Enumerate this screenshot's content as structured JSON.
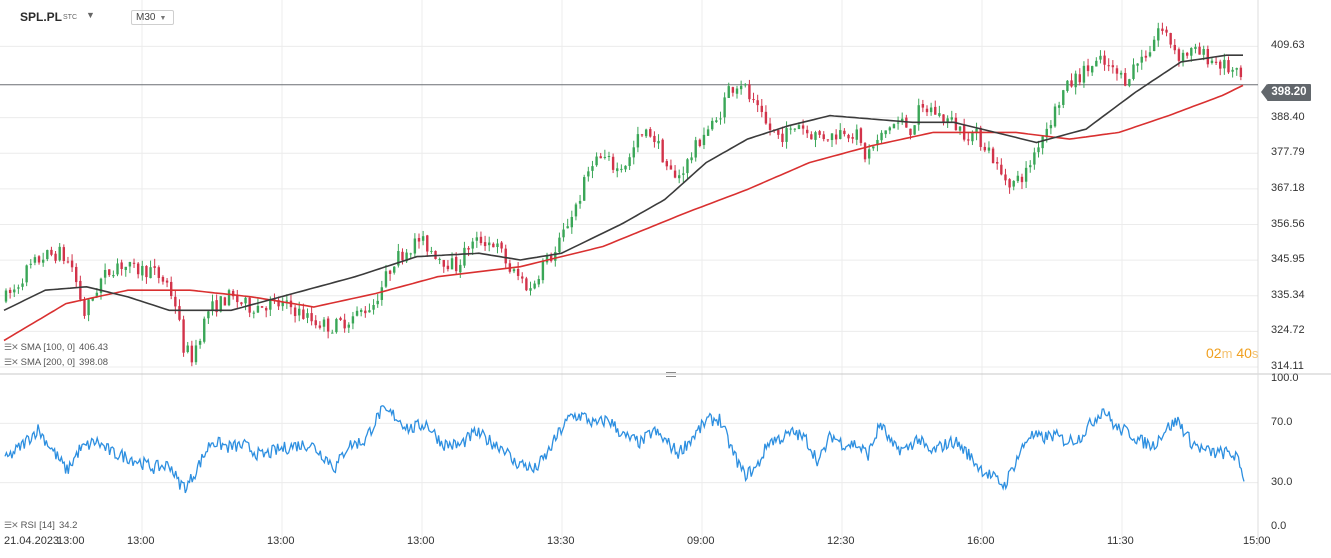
{
  "header": {
    "symbol": "SPL.PL",
    "symbol_suffix": "STC",
    "timeframe": "M30"
  },
  "indicators": {
    "sma100": {
      "label": "SMA [100,  0]",
      "value": "406.43",
      "color": "#3b3b3b"
    },
    "sma200": {
      "label": "SMA [200,  0]",
      "value": "398.08",
      "color": "#d93030"
    },
    "rsi": {
      "label": "RSI [14]",
      "value": "34.2",
      "color": "#2d8fe0"
    }
  },
  "current_price": "398.20",
  "countdown": {
    "min": "02",
    "min_unit": "m",
    "sec": "40",
    "sec_unit": "s"
  },
  "price_axis": {
    "ticks": [
      "409.63",
      "398.20",
      "388.40",
      "377.79",
      "367.18",
      "356.56",
      "345.95",
      "335.34",
      "324.72",
      "314.11"
    ]
  },
  "rsi_axis": {
    "ticks": [
      "100.0",
      "70.0",
      "30.0",
      "0.0"
    ]
  },
  "time_axis": {
    "labels": [
      "21.04.2023",
      "13:00",
      "13:00",
      "13:00",
      "13:00",
      "13:30",
      "09:00",
      "12:30",
      "16:00",
      "11:30",
      "15:00"
    ]
  },
  "chart_data": {
    "type": "candlestick",
    "price_range": [
      314.11,
      416
    ],
    "rsi_range": [
      0,
      100
    ],
    "last_price": 398.2,
    "up_color": "#3aa657",
    "down_color": "#d2334a",
    "anchors": [
      [
        0,
        334
      ],
      [
        3,
        337
      ],
      [
        6,
        343
      ],
      [
        10,
        347
      ],
      [
        14,
        348
      ],
      [
        17,
        344
      ],
      [
        20,
        330
      ],
      [
        24,
        340
      ],
      [
        28,
        345
      ],
      [
        32,
        343
      ],
      [
        36,
        343
      ],
      [
        40,
        339
      ],
      [
        42,
        333
      ],
      [
        44,
        320
      ],
      [
        46,
        317
      ],
      [
        50,
        331
      ],
      [
        55,
        335
      ],
      [
        60,
        332
      ],
      [
        65,
        333
      ],
      [
        70,
        332
      ],
      [
        75,
        328
      ],
      [
        80,
        326
      ],
      [
        85,
        329
      ],
      [
        90,
        333
      ],
      [
        95,
        346
      ],
      [
        98,
        349
      ],
      [
        101,
        352
      ],
      [
        104,
        349
      ],
      [
        107,
        346
      ],
      [
        110,
        344
      ],
      [
        113,
        350
      ],
      [
        116,
        352
      ],
      [
        119,
        351
      ],
      [
        121,
        348
      ],
      [
        123,
        343
      ],
      [
        126,
        340
      ],
      [
        128,
        337
      ],
      [
        131,
        345
      ],
      [
        134,
        348
      ],
      [
        137,
        357
      ],
      [
        140,
        365
      ],
      [
        143,
        376
      ],
      [
        146,
        376
      ],
      [
        149,
        373
      ],
      [
        152,
        376
      ],
      [
        154,
        382
      ],
      [
        157,
        384
      ],
      [
        159,
        380
      ],
      [
        161,
        374
      ],
      [
        163,
        370
      ],
      [
        166,
        375
      ],
      [
        170,
        384
      ],
      [
        173,
        387
      ],
      [
        176,
        397
      ],
      [
        179,
        399
      ],
      [
        182,
        392
      ],
      [
        185,
        386
      ],
      [
        188,
        383
      ],
      [
        191,
        384
      ],
      [
        193,
        387
      ],
      [
        195,
        384
      ],
      [
        198,
        383
      ],
      [
        201,
        383
      ],
      [
        204,
        385
      ],
      [
        207,
        383
      ],
      [
        209,
        377
      ],
      [
        212,
        381
      ],
      [
        215,
        386
      ],
      [
        218,
        387
      ],
      [
        220,
        385
      ],
      [
        222,
        390
      ],
      [
        225,
        391
      ],
      [
        227,
        389
      ],
      [
        230,
        387
      ],
      [
        233,
        384
      ],
      [
        236,
        383
      ],
      [
        239,
        379
      ],
      [
        242,
        371
      ],
      [
        245,
        369
      ],
      [
        248,
        372
      ],
      [
        251,
        381
      ],
      [
        254,
        388
      ],
      [
        257,
        396
      ],
      [
        260,
        400
      ],
      [
        263,
        403
      ],
      [
        266,
        405
      ],
      [
        269,
        402
      ],
      [
        272,
        400
      ],
      [
        275,
        405
      ],
      [
        278,
        409
      ],
      [
        280,
        415
      ],
      [
        282,
        413
      ],
      [
        285,
        407
      ],
      [
        288,
        408
      ],
      [
        291,
        407
      ],
      [
        294,
        405
      ],
      [
        297,
        403
      ],
      [
        300,
        400
      ]
    ],
    "sma100_anchors": [
      [
        0,
        331
      ],
      [
        10,
        337
      ],
      [
        20,
        338
      ],
      [
        30,
        335
      ],
      [
        40,
        331
      ],
      [
        55,
        331
      ],
      [
        70,
        336
      ],
      [
        85,
        341
      ],
      [
        100,
        347
      ],
      [
        115,
        348
      ],
      [
        125,
        346
      ],
      [
        135,
        348
      ],
      [
        150,
        357
      ],
      [
        160,
        364
      ],
      [
        170,
        375
      ],
      [
        180,
        382
      ],
      [
        190,
        386
      ],
      [
        200,
        389
      ],
      [
        210,
        388
      ],
      [
        220,
        387
      ],
      [
        230,
        387
      ],
      [
        240,
        384
      ],
      [
        250,
        381
      ],
      [
        262,
        385
      ],
      [
        274,
        396
      ],
      [
        285,
        405
      ],
      [
        296,
        407
      ],
      [
        300,
        407
      ]
    ],
    "sma200_anchors": [
      [
        0,
        322
      ],
      [
        15,
        333
      ],
      [
        30,
        337
      ],
      [
        45,
        337
      ],
      [
        60,
        335
      ],
      [
        75,
        332
      ],
      [
        90,
        336
      ],
      [
        105,
        341
      ],
      [
        125,
        344
      ],
      [
        145,
        350
      ],
      [
        165,
        360
      ],
      [
        180,
        367
      ],
      [
        195,
        375
      ],
      [
        210,
        380
      ],
      [
        225,
        384
      ],
      [
        245,
        384
      ],
      [
        258,
        382
      ],
      [
        270,
        384
      ],
      [
        282,
        389
      ],
      [
        295,
        395
      ],
      [
        300,
        398
      ]
    ],
    "rsi_anchors": [
      [
        0,
        45
      ],
      [
        4,
        55
      ],
      [
        8,
        66
      ],
      [
        12,
        50
      ],
      [
        15,
        38
      ],
      [
        18,
        52
      ],
      [
        22,
        58
      ],
      [
        26,
        50
      ],
      [
        30,
        47
      ],
      [
        36,
        40
      ],
      [
        40,
        42
      ],
      [
        42,
        30
      ],
      [
        44,
        27
      ],
      [
        46,
        37
      ],
      [
        50,
        58
      ],
      [
        54,
        54
      ],
      [
        58,
        55
      ],
      [
        62,
        48
      ],
      [
        66,
        52
      ],
      [
        70,
        55
      ],
      [
        74,
        56
      ],
      [
        78,
        46
      ],
      [
        80,
        40
      ],
      [
        83,
        55
      ],
      [
        87,
        58
      ],
      [
        91,
        78
      ],
      [
        94,
        76
      ],
      [
        98,
        66
      ],
      [
        102,
        70
      ],
      [
        106,
        56
      ],
      [
        110,
        55
      ],
      [
        114,
        64
      ],
      [
        118,
        57
      ],
      [
        121,
        53
      ],
      [
        123,
        44
      ],
      [
        126,
        42
      ],
      [
        128,
        38
      ],
      [
        131,
        48
      ],
      [
        134,
        63
      ],
      [
        137,
        75
      ],
      [
        140,
        75
      ],
      [
        143,
        69
      ],
      [
        146,
        73
      ],
      [
        150,
        61
      ],
      [
        154,
        57
      ],
      [
        157,
        65
      ],
      [
        160,
        58
      ],
      [
        163,
        50
      ],
      [
        166,
        59
      ],
      [
        170,
        72
      ],
      [
        173,
        73
      ],
      [
        176,
        52
      ],
      [
        179,
        35
      ],
      [
        182,
        40
      ],
      [
        185,
        58
      ],
      [
        188,
        60
      ],
      [
        191,
        64
      ],
      [
        194,
        59
      ],
      [
        197,
        44
      ],
      [
        200,
        62
      ],
      [
        203,
        56
      ],
      [
        206,
        56
      ],
      [
        209,
        49
      ],
      [
        212,
        70
      ],
      [
        215,
        54
      ],
      [
        218,
        52
      ],
      [
        221,
        60
      ],
      [
        224,
        50
      ],
      [
        227,
        55
      ],
      [
        230,
        58
      ],
      [
        233,
        50
      ],
      [
        236,
        40
      ],
      [
        239,
        34
      ],
      [
        242,
        28
      ],
      [
        245,
        46
      ],
      [
        248,
        62
      ],
      [
        251,
        60
      ],
      [
        254,
        62
      ],
      [
        257,
        58
      ],
      [
        260,
        60
      ],
      [
        263,
        70
      ],
      [
        266,
        80
      ],
      [
        269,
        67
      ],
      [
        272,
        64
      ],
      [
        275,
        58
      ],
      [
        278,
        55
      ],
      [
        281,
        66
      ],
      [
        284,
        72
      ],
      [
        287,
        58
      ],
      [
        290,
        52
      ],
      [
        293,
        50
      ],
      [
        296,
        50
      ],
      [
        298,
        48
      ],
      [
        300,
        34
      ]
    ]
  }
}
